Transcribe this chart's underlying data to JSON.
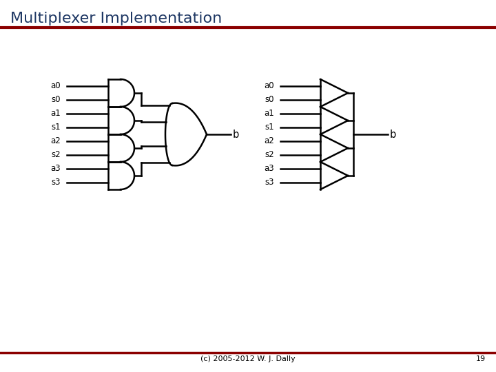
{
  "title": "Multiplexer Implementation",
  "title_color": "#1F3864",
  "title_fontsize": 16,
  "bg_color": "#FFFFFF",
  "border_color": "#8B0000",
  "footer_text": "(c) 2005-2012 W. J. Dally",
  "page_number": "19",
  "gate_color": "#000000",
  "label_color": "#000000",
  "label_fontsize": 8.5,
  "and_labels": [
    [
      "a0",
      "s0"
    ],
    [
      "a1",
      "s1"
    ],
    [
      "a2",
      "s2"
    ],
    [
      "a3",
      "s3"
    ]
  ],
  "tri_labels": [
    [
      "a0",
      "s0"
    ],
    [
      "a1",
      "s1"
    ],
    [
      "a2",
      "s2"
    ],
    [
      "a3",
      "s3"
    ]
  ],
  "output_label": "b"
}
